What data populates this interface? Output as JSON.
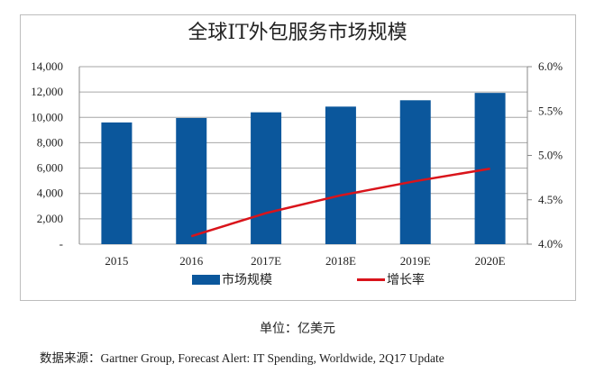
{
  "chart_data": {
    "type": "bar+line",
    "title": "全球IT外包服务市场规模",
    "categories": [
      "2015",
      "2016",
      "2017E",
      "2018E",
      "2019E",
      "2020E"
    ],
    "series": [
      {
        "name": "市场规模",
        "type": "bar",
        "axis": "left",
        "color": "#0b579c",
        "values": [
          9600,
          9950,
          10400,
          10850,
          11350,
          11930
        ]
      },
      {
        "name": "增长率",
        "type": "line",
        "axis": "right",
        "color": "#d9141b",
        "values": [
          null,
          4.09,
          4.35,
          4.55,
          4.71,
          4.85
        ]
      }
    ],
    "left_axis": {
      "ylim": [
        0,
        14000
      ],
      "ticks": [
        "-",
        "2,000",
        "4,000",
        "6,000",
        "8,000",
        "10,000",
        "12,000",
        "14,000"
      ]
    },
    "right_axis": {
      "ylim": [
        4.0,
        6.0
      ],
      "ticks": [
        "4.0%",
        "4.5%",
        "5.0%",
        "5.5%",
        "6.0%"
      ]
    },
    "grid": true,
    "legend_position": "bottom"
  },
  "footer": {
    "unit": "单位：亿美元",
    "source_label": "数据来源：",
    "source_text": "Gartner Group, Forecast Alert: IT Spending, Worldwide, 2Q17 Update"
  }
}
